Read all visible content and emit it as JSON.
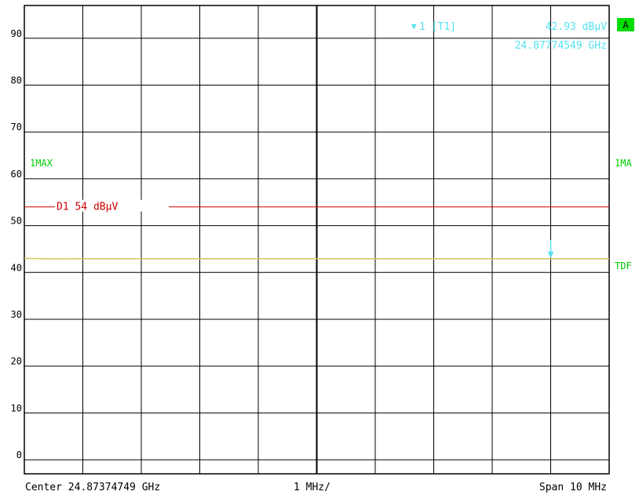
{
  "chart_data": {
    "type": "line",
    "title": "",
    "xlabel": "",
    "ylabel": "",
    "y_ticks": [
      "90",
      "80",
      "70",
      "60",
      "50",
      "40",
      "30",
      "20",
      "10",
      "0"
    ],
    "ylim": [
      -3,
      97
    ],
    "x_center_ghz": 24.87374749,
    "x_span_mhz": 10,
    "grid": true,
    "series": [
      {
        "x_offset_mhz": [
          -5,
          -4.5,
          -4,
          -3,
          -2,
          -1,
          0,
          1,
          2,
          3,
          4,
          5
        ],
        "values": [
          43.0,
          42.9,
          42.95,
          42.95,
          42.93,
          42.95,
          42.95,
          42.93,
          42.95,
          42.94,
          42.93,
          42.95
        ],
        "color": "#d2c45a"
      }
    ],
    "limit_line": {
      "label": "D1  54  dBµV",
      "value": 54,
      "color": "#cc0000"
    },
    "marker": {
      "label": "1  [T1]",
      "level_text": "42.93  dBµV",
      "freq_text": "24.87774549  GHz",
      "x_offset_mhz": 4.0,
      "value": 42.93,
      "color": "#55e0f0"
    }
  },
  "header": {
    "trace_mode_left": "1MAX",
    "trace_mode_right": "1MA",
    "tdf_label": "TDF",
    "badge_text": "A"
  },
  "footer": {
    "center_text": "Center  24.87374749  GHz",
    "div_text": "1  MHz/",
    "span_text": "Span  10  MHz"
  },
  "colors": {
    "grid": "#000000",
    "side_text": "#00cc00",
    "badge_bg": "#00dd00",
    "footer_text": "#000000"
  }
}
